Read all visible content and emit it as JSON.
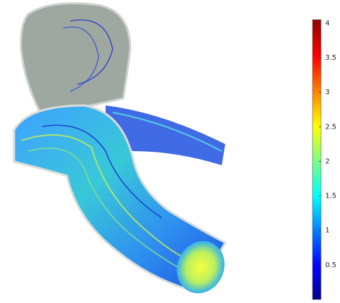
{
  "colorbar": {
    "range": [
      0,
      4.05
    ],
    "ticks": [
      0.5,
      1,
      1.5,
      2,
      2.5,
      3,
      3.5,
      4
    ]
  }
}
